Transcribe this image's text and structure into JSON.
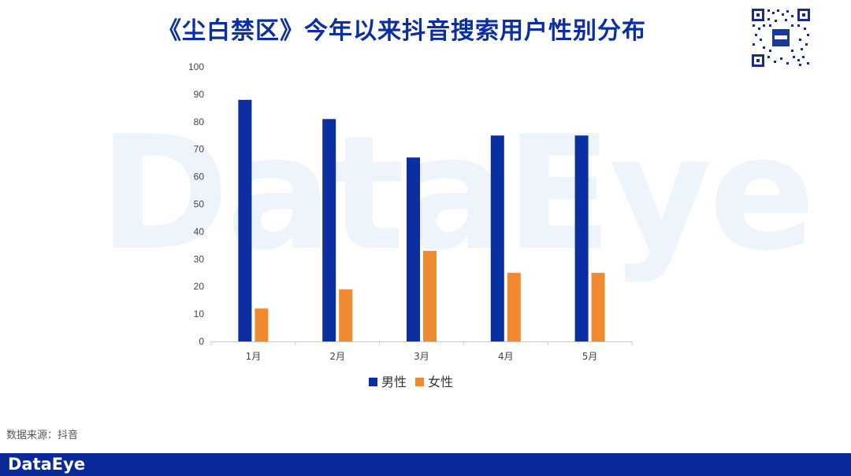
{
  "title": "《尘白禁区》今年以来抖音搜索用户性别分布",
  "watermark": "DataEye",
  "source": "数据来源：抖音",
  "footer_logo": "DataEye",
  "colors": {
    "male": "#0b2fa0",
    "female": "#f08a30",
    "brand": "#0b2a9a"
  },
  "chart_data": {
    "type": "bar",
    "categories": [
      "1月",
      "2月",
      "3月",
      "4月",
      "5月"
    ],
    "series": [
      {
        "name": "男性",
        "values": [
          88,
          81,
          67,
          75,
          75
        ],
        "color": "#0b2fa0"
      },
      {
        "name": "女性",
        "values": [
          12,
          19,
          33,
          25,
          25
        ],
        "color": "#f08a30"
      }
    ],
    "ylim": [
      0,
      100
    ],
    "yticks": [
      0,
      10,
      20,
      30,
      40,
      50,
      60,
      70,
      80,
      90,
      100
    ],
    "legend": "bottom",
    "grid": false
  }
}
